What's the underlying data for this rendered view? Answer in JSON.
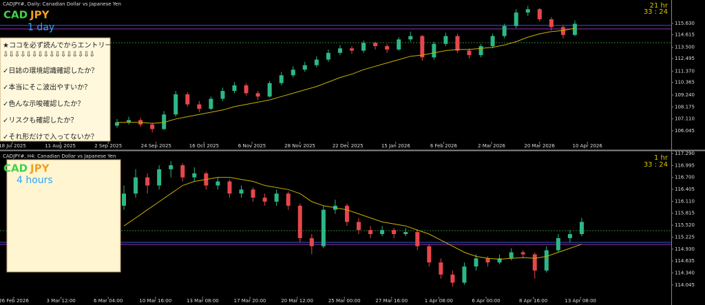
{
  "panels": [
    {
      "title": "CADJPY#, Daily:  Canadian Dollar vs Japanese Yen",
      "base": "CAD",
      "quote": "JPY",
      "timeframe": "1 day",
      "countdown": [
        "21 hr",
        "33 : 24"
      ],
      "ylim": [
        105.12,
        117.72
      ],
      "yticks": [
        {
          "value": 115.63,
          "label": "115.630"
        },
        {
          "value": 114.615,
          "label": "114.615"
        },
        {
          "value": 113.5,
          "label": "113.500"
        },
        {
          "value": 112.495,
          "label": "112.495"
        },
        {
          "value": 111.37,
          "label": "111.370"
        },
        {
          "value": 110.365,
          "label": "110.365"
        },
        {
          "value": 109.24,
          "label": "109.240"
        },
        {
          "value": 108.175,
          "label": "108.175"
        },
        {
          "value": 107.11,
          "label": "107.110"
        },
        {
          "value": 106.045,
          "label": "106.045"
        }
      ],
      "dates": [
        "18 Jul 2025",
        "11 Aug 2025",
        "2 Sep 2025",
        "24 Sep 2025",
        "16 Oct 2025",
        "6 Nov 2025",
        "28 Nov 2025",
        "22 Dec 2025",
        "15 Jan 2026",
        "6 Feb 2026",
        "2 Mar 2026",
        "20 Mar 2026",
        "10 Apr 2026"
      ],
      "up_color": "#2db787",
      "down_color": "#e5474b",
      "ma_color": "#c8b400",
      "candles": [
        [
          106.5,
          107.1,
          106.3,
          106.8
        ],
        [
          106.8,
          107.3,
          106.6,
          107.0
        ],
        [
          107.0,
          107.2,
          106.4,
          106.6
        ],
        [
          106.6,
          106.8,
          105.9,
          106.2
        ],
        [
          106.2,
          107.8,
          106.1,
          107.5
        ],
        [
          107.5,
          109.6,
          107.3,
          109.3
        ],
        [
          109.3,
          109.5,
          108.2,
          108.4
        ],
        [
          108.4,
          108.7,
          107.7,
          108.0
        ],
        [
          108.0,
          109.1,
          107.9,
          108.9
        ],
        [
          108.9,
          109.9,
          108.7,
          109.6
        ],
        [
          109.6,
          110.4,
          109.4,
          110.1
        ],
        [
          110.1,
          110.3,
          109.2,
          109.4
        ],
        [
          109.4,
          109.6,
          108.8,
          109.1
        ],
        [
          109.1,
          110.5,
          109.0,
          110.3
        ],
        [
          110.3,
          111.3,
          110.1,
          111.0
        ],
        [
          111.0,
          111.8,
          110.8,
          111.5
        ],
        [
          111.5,
          112.2,
          111.3,
          111.9
        ],
        [
          111.9,
          112.7,
          111.7,
          112.4
        ],
        [
          112.4,
          113.3,
          112.2,
          113.0
        ],
        [
          113.0,
          113.7,
          112.8,
          113.4
        ],
        [
          113.4,
          113.6,
          112.9,
          113.2
        ],
        [
          113.2,
          114.1,
          113.0,
          113.9
        ],
        [
          113.9,
          114.0,
          113.3,
          113.6
        ],
        [
          113.6,
          113.8,
          113.0,
          113.3
        ],
        [
          113.3,
          114.4,
          113.2,
          114.2
        ],
        [
          114.2,
          114.9,
          114.0,
          114.5
        ],
        [
          114.5,
          114.6,
          112.3,
          112.6
        ],
        [
          112.6,
          114.0,
          112.4,
          113.8
        ],
        [
          113.8,
          114.8,
          113.6,
          114.5
        ],
        [
          114.5,
          114.7,
          113.0,
          113.2
        ],
        [
          113.2,
          113.4,
          112.5,
          112.8
        ],
        [
          112.8,
          113.8,
          112.6,
          113.6
        ],
        [
          113.6,
          114.7,
          113.4,
          114.5
        ],
        [
          114.5,
          115.6,
          114.3,
          115.4
        ],
        [
          115.4,
          116.9,
          115.2,
          116.6
        ],
        [
          116.6,
          117.2,
          116.3,
          116.9
        ],
        [
          116.9,
          117.0,
          115.8,
          116.0
        ],
        [
          116.0,
          116.2,
          115.0,
          115.3
        ],
        [
          115.3,
          115.5,
          114.3,
          114.6
        ],
        [
          114.6,
          115.9,
          114.5,
          115.6
        ]
      ],
      "ma": [
        106.8,
        106.8,
        106.8,
        106.7,
        106.8,
        107.1,
        107.3,
        107.5,
        107.7,
        107.9,
        108.2,
        108.4,
        108.6,
        108.8,
        109.1,
        109.4,
        109.7,
        110.0,
        110.4,
        110.8,
        111.1,
        111.5,
        111.8,
        112.1,
        112.4,
        112.7,
        112.8,
        113.0,
        113.2,
        113.3,
        113.3,
        113.4,
        113.5,
        113.7,
        114.0,
        114.4,
        114.7,
        114.9,
        115.0,
        115.2
      ],
      "levels": [
        {
          "value": 115.45,
          "color": "#3a5bd9"
        },
        {
          "value": 115.14,
          "color": "#9a2fb8"
        },
        {
          "value": 113.91,
          "color": "#2f8a2f"
        }
      ]
    },
    {
      "title": "CADJPY#, H4:  Canadian Dollar vs Japanese Yen",
      "base": "CAD",
      "quote": "JPY",
      "timeframe": "4 hours",
      "countdown": [
        "1 hr",
        "33 : 24"
      ],
      "ylim": [
        113.77,
        117.34
      ],
      "yticks": [
        {
          "value": 117.29,
          "label": "117.290"
        },
        {
          "value": 116.995,
          "label": "116.995"
        },
        {
          "value": 116.7,
          "label": "116.700"
        },
        {
          "value": 116.405,
          "label": "116.405"
        },
        {
          "value": 116.11,
          "label": "116.110"
        },
        {
          "value": 115.815,
          "label": "115.815"
        },
        {
          "value": 115.52,
          "label": "115.520"
        },
        {
          "value": 115.225,
          "label": "115.225"
        },
        {
          "value": 114.93,
          "label": "114.930"
        },
        {
          "value": 114.635,
          "label": "114.635"
        },
        {
          "value": 114.34,
          "label": "114.340"
        },
        {
          "value": 114.045,
          "label": "114.045"
        }
      ],
      "dates": [
        "26 Feb 2026",
        "3 Mar 12:00",
        "6 Mar 04:00",
        "10 Mar 16:00",
        "13 Mar 08:00",
        "17 Mar 20:00",
        "20 Mar 12:00",
        "25 Mar 00:00",
        "27 Mar 16:00",
        "1 Apr 08:00",
        "6 Apr 00:00",
        "8 Apr 16:00",
        "13 Apr 08:00"
      ],
      "up_color": "#2db787",
      "down_color": "#e5474b",
      "ma_color": "#c8b400",
      "candles": [
        [
          116.0,
          116.5,
          115.9,
          116.3
        ],
        [
          116.3,
          116.9,
          116.2,
          116.7
        ],
        [
          116.7,
          116.8,
          116.3,
          116.5
        ],
        [
          116.5,
          117.0,
          116.4,
          116.9
        ],
        [
          116.9,
          117.1,
          116.7,
          117.0
        ],
        [
          117.0,
          117.05,
          116.6,
          116.7
        ],
        [
          116.7,
          116.95,
          116.6,
          116.8
        ],
        [
          116.8,
          116.85,
          116.4,
          116.5
        ],
        [
          116.5,
          116.7,
          116.4,
          116.6
        ],
        [
          116.6,
          116.65,
          116.2,
          116.3
        ],
        [
          116.3,
          116.5,
          116.2,
          116.4
        ],
        [
          116.4,
          116.45,
          116.1,
          116.2
        ],
        [
          116.2,
          116.3,
          116.0,
          116.1
        ],
        [
          116.1,
          116.4,
          116.0,
          116.3
        ],
        [
          116.3,
          116.35,
          115.9,
          116.0
        ],
        [
          116.0,
          116.05,
          115.1,
          115.2
        ],
        [
          115.2,
          115.3,
          114.8,
          115.0
        ],
        [
          115.0,
          116.0,
          114.95,
          115.9
        ],
        [
          115.9,
          116.15,
          115.8,
          116.0
        ],
        [
          116.0,
          116.05,
          115.5,
          115.6
        ],
        [
          115.6,
          115.7,
          115.3,
          115.4
        ],
        [
          115.4,
          115.5,
          115.2,
          115.3
        ],
        [
          115.3,
          115.5,
          115.25,
          115.4
        ],
        [
          115.4,
          115.45,
          115.2,
          115.3
        ],
        [
          115.3,
          115.45,
          115.25,
          115.35
        ],
        [
          115.35,
          115.4,
          114.9,
          115.0
        ],
        [
          115.0,
          115.05,
          114.5,
          114.6
        ],
        [
          114.6,
          114.7,
          114.2,
          114.3
        ],
        [
          114.3,
          114.4,
          114.0,
          114.1
        ],
        [
          114.1,
          114.6,
          114.05,
          114.5
        ],
        [
          114.5,
          114.8,
          114.4,
          114.7
        ],
        [
          114.7,
          114.75,
          114.5,
          114.6
        ],
        [
          114.6,
          114.8,
          114.55,
          114.7
        ],
        [
          114.7,
          114.95,
          114.65,
          114.85
        ],
        [
          114.85,
          114.9,
          114.7,
          114.8
        ],
        [
          114.8,
          114.85,
          114.2,
          114.4
        ],
        [
          114.4,
          115.0,
          114.35,
          114.9
        ],
        [
          114.9,
          115.3,
          114.85,
          115.2
        ],
        [
          115.2,
          115.4,
          115.1,
          115.3
        ],
        [
          115.3,
          115.7,
          115.25,
          115.6
        ]
      ],
      "ma": [
        115.5,
        115.7,
        115.9,
        116.1,
        116.3,
        116.5,
        116.6,
        116.65,
        116.7,
        116.7,
        116.65,
        116.6,
        116.5,
        116.45,
        116.4,
        116.3,
        116.1,
        116.0,
        115.95,
        115.9,
        115.8,
        115.7,
        115.6,
        115.55,
        115.5,
        115.4,
        115.3,
        115.15,
        115.0,
        114.85,
        114.75,
        114.7,
        114.68,
        114.7,
        114.72,
        114.7,
        114.75,
        114.85,
        114.95,
        115.05
      ],
      "levels": [
        {
          "value": 115.386,
          "color": "#2f8a2f"
        },
        {
          "value": 115.097,
          "color": "#3a5bd9"
        },
        {
          "value": 115.046,
          "color": "#9a2fb8"
        }
      ]
    }
  ],
  "note": {
    "heading": "★ココを必ず読んでからエントリー",
    "arrows": "⇩⇩⇩⇩⇩⇩⇩⇩⇩⇩⇩⇩⇩⇩⇩⇩",
    "items": [
      "✓日誌の環境認識確認したか？",
      "✓本当にそこ波出やすいか？",
      "✓色んな示唆確認したか？",
      "✓リスクも確認したか？",
      "✓それ形だけで入ってないか？"
    ]
  }
}
